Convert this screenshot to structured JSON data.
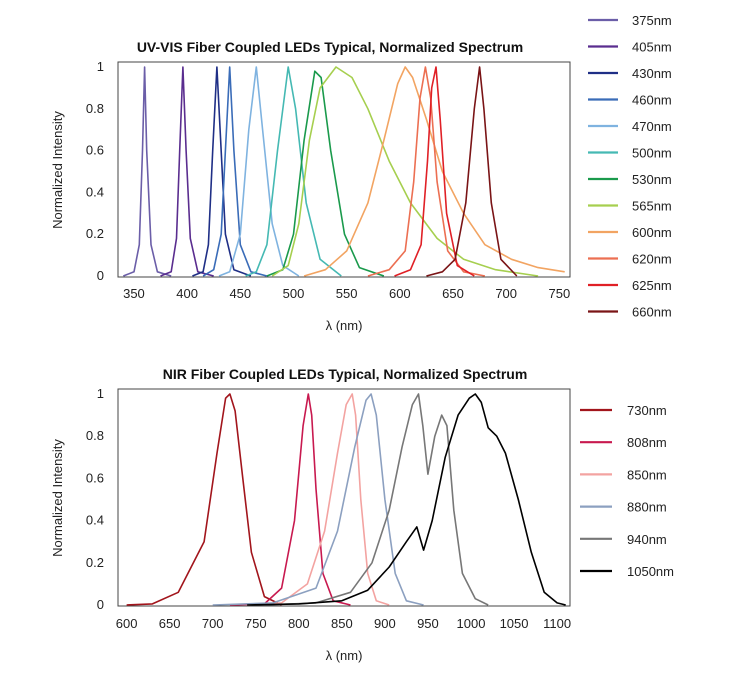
{
  "chart_data": [
    {
      "type": "line",
      "title": "UV-VIS Fiber Coupled LEDs Typical, Normalized Spectrum",
      "xlabel": "λ (nm)",
      "ylabel": "Normalized Intensity",
      "xlim": [
        335,
        760
      ],
      "ylim": [
        0,
        1
      ],
      "x_ticks": [
        350,
        400,
        450,
        500,
        550,
        600,
        650,
        700,
        750
      ],
      "y_ticks": [
        0,
        0.2,
        0.4,
        0.6,
        0.8,
        1
      ],
      "y_tick_labels": [
        "0",
        "0.2",
        "0.4",
        "0.6",
        "0.8",
        "1"
      ],
      "grid": false,
      "legend_position": "right",
      "series": [
        {
          "name": "375nm",
          "color": "#6b5ea8",
          "points": [
            [
              340,
              0
            ],
            [
              350,
              0.02
            ],
            [
              355,
              0.15
            ],
            [
              358,
              0.6
            ],
            [
              360,
              1
            ],
            [
              362,
              0.6
            ],
            [
              366,
              0.15
            ],
            [
              372,
              0.02
            ],
            [
              385,
              0
            ]
          ]
        },
        {
          "name": "405nm",
          "color": "#5a2d8f",
          "points": [
            [
              375,
              0
            ],
            [
              385,
              0.02
            ],
            [
              390,
              0.18
            ],
            [
              393,
              0.6
            ],
            [
              396,
              1
            ],
            [
              399,
              0.6
            ],
            [
              403,
              0.18
            ],
            [
              410,
              0.02
            ],
            [
              425,
              0
            ]
          ]
        },
        {
          "name": "430nm",
          "color": "#1f2f86",
          "points": [
            [
              405,
              0
            ],
            [
              415,
              0.02
            ],
            [
              420,
              0.15
            ],
            [
              424,
              0.6
            ],
            [
              428,
              1
            ],
            [
              431,
              0.7
            ],
            [
              436,
              0.2
            ],
            [
              444,
              0.03
            ],
            [
              460,
              0
            ]
          ]
        },
        {
          "name": "460nm",
          "color": "#3a6cb8",
          "points": [
            [
              415,
              0
            ],
            [
              425,
              0.03
            ],
            [
              432,
              0.2
            ],
            [
              436,
              0.6
            ],
            [
              440,
              1
            ],
            [
              444,
              0.6
            ],
            [
              450,
              0.15
            ],
            [
              460,
              0.02
            ],
            [
              475,
              0
            ]
          ]
        },
        {
          "name": "470nm",
          "color": "#7fb3e0",
          "points": [
            [
              430,
              0
            ],
            [
              440,
              0.02
            ],
            [
              450,
              0.2
            ],
            [
              458,
              0.7
            ],
            [
              465,
              1
            ],
            [
              471,
              0.7
            ],
            [
              480,
              0.25
            ],
            [
              490,
              0.05
            ],
            [
              505,
              0
            ]
          ]
        },
        {
          "name": "500nm",
          "color": "#45b9b3",
          "points": [
            [
              455,
              0
            ],
            [
              465,
              0.02
            ],
            [
              475,
              0.15
            ],
            [
              485,
              0.6
            ],
            [
              495,
              1
            ],
            [
              502,
              0.8
            ],
            [
              512,
              0.35
            ],
            [
              525,
              0.08
            ],
            [
              545,
              0
            ]
          ]
        },
        {
          "name": "530nm",
          "color": "#1a9a4c",
          "points": [
            [
              475,
              0
            ],
            [
              490,
              0.03
            ],
            [
              500,
              0.2
            ],
            [
              510,
              0.65
            ],
            [
              520,
              0.98
            ],
            [
              526,
              0.95
            ],
            [
              535,
              0.6
            ],
            [
              548,
              0.2
            ],
            [
              562,
              0.04
            ],
            [
              585,
              0
            ]
          ]
        },
        {
          "name": "565nm",
          "color": "#a6cf4f",
          "points": [
            [
              480,
              0
            ],
            [
              495,
              0.05
            ],
            [
              505,
              0.25
            ],
            [
              515,
              0.65
            ],
            [
              525,
              0.9
            ],
            [
              540,
              1
            ],
            [
              555,
              0.95
            ],
            [
              570,
              0.8
            ],
            [
              590,
              0.55
            ],
            [
              610,
              0.35
            ],
            [
              635,
              0.18
            ],
            [
              660,
              0.08
            ],
            [
              690,
              0.03
            ],
            [
              730,
              0
            ]
          ]
        },
        {
          "name": "600nm",
          "color": "#f2a462",
          "points": [
            [
              510,
              0
            ],
            [
              530,
              0.03
            ],
            [
              550,
              0.12
            ],
            [
              570,
              0.35
            ],
            [
              585,
              0.65
            ],
            [
              598,
              0.92
            ],
            [
              605,
              1
            ],
            [
              612,
              0.95
            ],
            [
              625,
              0.75
            ],
            [
              640,
              0.5
            ],
            [
              660,
              0.3
            ],
            [
              680,
              0.15
            ],
            [
              705,
              0.08
            ],
            [
              730,
              0.04
            ],
            [
              755,
              0.02
            ]
          ]
        },
        {
          "name": "620nm",
          "color": "#ec6f52",
          "points": [
            [
              570,
              0
            ],
            [
              590,
              0.03
            ],
            [
              605,
              0.12
            ],
            [
              613,
              0.45
            ],
            [
              619,
              0.85
            ],
            [
              624,
              1
            ],
            [
              629,
              0.85
            ],
            [
              635,
              0.45
            ],
            [
              645,
              0.12
            ],
            [
              660,
              0.02
            ],
            [
              680,
              0
            ]
          ]
        },
        {
          "name": "625nm",
          "color": "#e02026",
          "points": [
            [
              595,
              0
            ],
            [
              610,
              0.03
            ],
            [
              620,
              0.15
            ],
            [
              626,
              0.55
            ],
            [
              630,
              0.9
            ],
            [
              634,
              1
            ],
            [
              638,
              0.75
            ],
            [
              644,
              0.3
            ],
            [
              654,
              0.05
            ],
            [
              670,
              0
            ]
          ]
        },
        {
          "name": "660nm",
          "color": "#7a1416",
          "points": [
            [
              625,
              0
            ],
            [
              640,
              0.02
            ],
            [
              652,
              0.08
            ],
            [
              662,
              0.35
            ],
            [
              670,
              0.8
            ],
            [
              675,
              1
            ],
            [
              679,
              0.8
            ],
            [
              686,
              0.35
            ],
            [
              695,
              0.08
            ],
            [
              710,
              0
            ]
          ]
        }
      ]
    },
    {
      "type": "line",
      "title": "NIR Fiber Coupled LEDs Typical, Normalized Spectrum",
      "xlabel": "λ (nm)",
      "ylabel": "Normalized Intensity",
      "xlim": [
        590,
        1115
      ],
      "ylim": [
        0,
        1
      ],
      "x_ticks": [
        600,
        650,
        700,
        750,
        800,
        850,
        900,
        950,
        1000,
        1050,
        1100
      ],
      "y_ticks": [
        0,
        0.2,
        0.4,
        0.6,
        0.8,
        1
      ],
      "y_tick_labels": [
        "0",
        "0.2",
        "0.4",
        "0.6",
        "0.8",
        "1"
      ],
      "grid": false,
      "legend_position": "right",
      "series": [
        {
          "name": "730nm",
          "color": "#a2151c",
          "points": [
            [
              600,
              0
            ],
            [
              630,
              0.005
            ],
            [
              660,
              0.06
            ],
            [
              690,
              0.3
            ],
            [
              705,
              0.72
            ],
            [
              715,
              0.98
            ],
            [
              720,
              1
            ],
            [
              726,
              0.92
            ],
            [
              735,
              0.6
            ],
            [
              745,
              0.25
            ],
            [
              760,
              0.04
            ],
            [
              780,
              0
            ]
          ]
        },
        {
          "name": "808nm",
          "color": "#c8194f",
          "points": [
            [
              720,
              0
            ],
            [
              760,
              0.005
            ],
            [
              780,
              0.08
            ],
            [
              795,
              0.4
            ],
            [
              805,
              0.85
            ],
            [
              811,
              1
            ],
            [
              815,
              0.9
            ],
            [
              820,
              0.55
            ],
            [
              828,
              0.15
            ],
            [
              840,
              0.02
            ],
            [
              860,
              0
            ]
          ]
        },
        {
          "name": "850nm",
          "color": "#f3a3a1",
          "points": [
            [
              740,
              0
            ],
            [
              780,
              0.01
            ],
            [
              810,
              0.1
            ],
            [
              830,
              0.35
            ],
            [
              845,
              0.72
            ],
            [
              855,
              0.95
            ],
            [
              862,
              1
            ],
            [
              866,
              0.9
            ],
            [
              872,
              0.5
            ],
            [
              880,
              0.15
            ],
            [
              890,
              0.02
            ],
            [
              905,
              0
            ]
          ]
        },
        {
          "name": "880nm",
          "color": "#8ca0c0",
          "points": [
            [
              700,
              0
            ],
            [
              770,
              0.01
            ],
            [
              820,
              0.08
            ],
            [
              845,
              0.35
            ],
            [
              865,
              0.75
            ],
            [
              878,
              0.97
            ],
            [
              884,
              1
            ],
            [
              890,
              0.9
            ],
            [
              900,
              0.5
            ],
            [
              912,
              0.15
            ],
            [
              925,
              0.02
            ],
            [
              945,
              0
            ]
          ]
        },
        {
          "name": "940nm",
          "color": "#777777",
          "points": [
            [
              760,
              0
            ],
            [
              820,
              0.01
            ],
            [
              860,
              0.06
            ],
            [
              885,
              0.2
            ],
            [
              905,
              0.45
            ],
            [
              920,
              0.75
            ],
            [
              932,
              0.95
            ],
            [
              939,
              1
            ],
            [
              944,
              0.85
            ],
            [
              950,
              0.62
            ],
            [
              958,
              0.8
            ],
            [
              966,
              0.9
            ],
            [
              972,
              0.85
            ],
            [
              980,
              0.45
            ],
            [
              990,
              0.15
            ],
            [
              1005,
              0.03
            ],
            [
              1020,
              0
            ]
          ]
        },
        {
          "name": "1050nm",
          "color": "#000000",
          "points": [
            [
              740,
              0
            ],
            [
              800,
              0.005
            ],
            [
              850,
              0.02
            ],
            [
              880,
              0.07
            ],
            [
              905,
              0.18
            ],
            [
              925,
              0.3
            ],
            [
              937,
              0.37
            ],
            [
              945,
              0.26
            ],
            [
              955,
              0.4
            ],
            [
              970,
              0.7
            ],
            [
              985,
              0.9
            ],
            [
              998,
              0.98
            ],
            [
              1005,
              1
            ],
            [
              1012,
              0.96
            ],
            [
              1020,
              0.84
            ],
            [
              1030,
              0.8
            ],
            [
              1040,
              0.72
            ],
            [
              1055,
              0.5
            ],
            [
              1070,
              0.25
            ],
            [
              1085,
              0.06
            ],
            [
              1100,
              0.01
            ],
            [
              1110,
              0
            ]
          ]
        }
      ]
    }
  ]
}
